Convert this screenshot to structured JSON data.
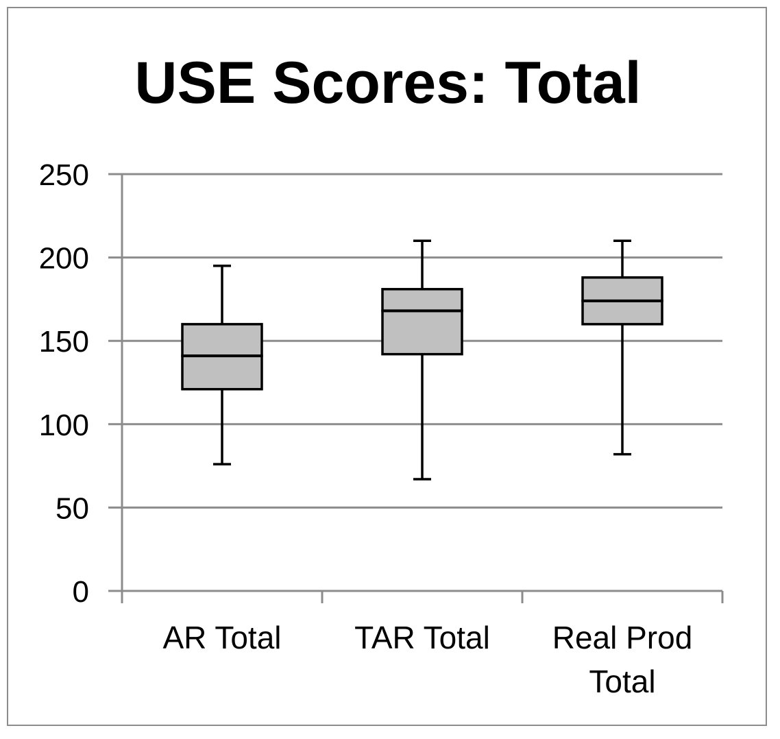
{
  "chart_data": {
    "type": "box",
    "title": "USE Scores: Total",
    "xlabel": "",
    "ylabel": "",
    "ylim": [
      0,
      250
    ],
    "yticks": [
      0,
      50,
      100,
      150,
      200,
      250
    ],
    "grid": true,
    "legend": "none",
    "categories": [
      [
        "AR Total"
      ],
      [
        "TAR Total"
      ],
      [
        "Real Prod",
        "Total"
      ]
    ],
    "boxes": [
      {
        "min": 76,
        "q1": 121,
        "median": 141,
        "q3": 160,
        "max": 195
      },
      {
        "min": 67,
        "q1": 142,
        "median": 168,
        "q3": 181,
        "max": 210
      },
      {
        "min": 82,
        "q1": 160,
        "median": 174,
        "q3": 188,
        "max": 210
      }
    ],
    "colors": {
      "box_fill": "#c0c0c0",
      "box_stroke": "#000000",
      "grid": "#8c8c8c",
      "axis": "#8c8c8c"
    }
  }
}
